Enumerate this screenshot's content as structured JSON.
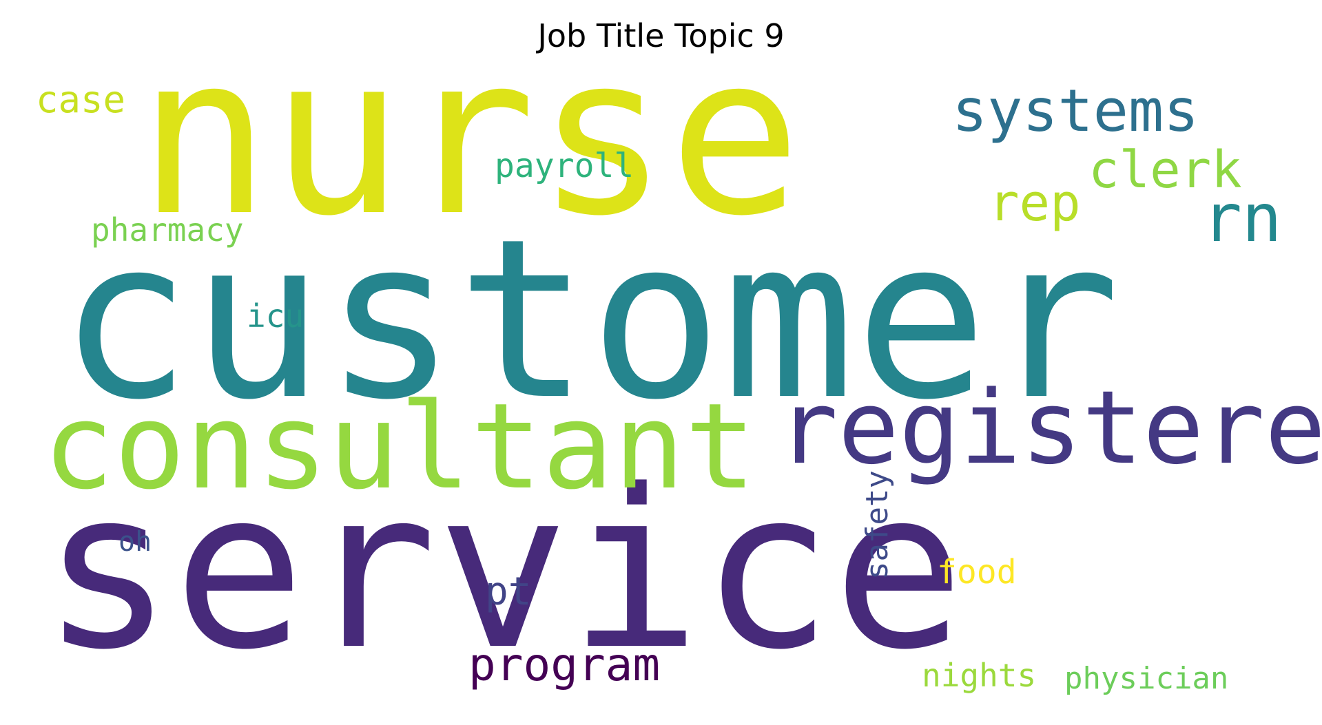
{
  "title": "Job Title Topic 9",
  "words": [
    {
      "text": "nurse",
      "color": "#dde318"
    },
    {
      "text": "customer",
      "color": "#25858e"
    },
    {
      "text": "service",
      "color": "#472a7a"
    },
    {
      "text": "consultant",
      "color": "#95d840"
    },
    {
      "text": "registered",
      "color": "#443983"
    },
    {
      "text": "systems",
      "color": "#2d708e"
    },
    {
      "text": "rn",
      "color": "#23888e"
    },
    {
      "text": "clerk",
      "color": "#8fd744"
    },
    {
      "text": "rep",
      "color": "#b8de29"
    },
    {
      "text": "case",
      "color": "#c8e020"
    },
    {
      "text": "payroll",
      "color": "#2eb37c"
    },
    {
      "text": "pharmacy",
      "color": "#7ad151"
    },
    {
      "text": "icu",
      "color": "#25948b"
    },
    {
      "text": "oh",
      "color": "#3b528b"
    },
    {
      "text": "pt",
      "color": "#414487"
    },
    {
      "text": "program",
      "color": "#440154"
    },
    {
      "text": "safety",
      "color": "#3e4a89"
    },
    {
      "text": "food",
      "color": "#fde725"
    },
    {
      "text": "nights",
      "color": "#9bd93c"
    },
    {
      "text": "physician",
      "color": "#6ccd5a"
    }
  ]
}
